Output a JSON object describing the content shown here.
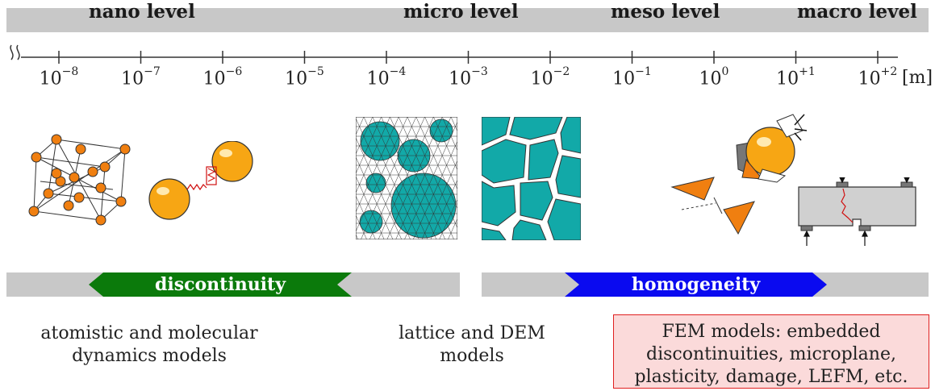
{
  "levels": {
    "nano": "nano level",
    "micro": "micro level",
    "meso": "meso level",
    "macro": "macro level"
  },
  "axis": {
    "ticks": [
      {
        "base": "10",
        "exp": "−8"
      },
      {
        "base": "10",
        "exp": "−7"
      },
      {
        "base": "10",
        "exp": "−6"
      },
      {
        "base": "10",
        "exp": "−5"
      },
      {
        "base": "10",
        "exp": "−4"
      },
      {
        "base": "10",
        "exp": "−3"
      },
      {
        "base": "10",
        "exp": "−2"
      },
      {
        "base": "10",
        "exp": "−1"
      },
      {
        "base": "10",
        "exp": "0"
      },
      {
        "base": "10",
        "exp": "+1"
      },
      {
        "base": "10",
        "exp": "+2"
      }
    ],
    "unit": "[m]"
  },
  "bands": {
    "discontinuity": "discontinuity",
    "homogeneity": "homogeneity"
  },
  "descriptions": {
    "atomistic_line1": "atomistic and molecular",
    "atomistic_line2": "dynamics models",
    "lattice_line1": "lattice and DEM",
    "lattice_line2": "models",
    "fem_line1": "FEM models: embedded",
    "fem_line2": "discontinuities, microplane,",
    "fem_line3": "plasticity, damage, LEFM, etc."
  },
  "colors": {
    "orange": "#f7a614",
    "teal": "#12a9a8",
    "green": "#0b7a0b",
    "blue": "#0a0af0",
    "gray": "#c8c8c8",
    "red_border": "#e02020",
    "pink_fill": "#fbdada"
  }
}
